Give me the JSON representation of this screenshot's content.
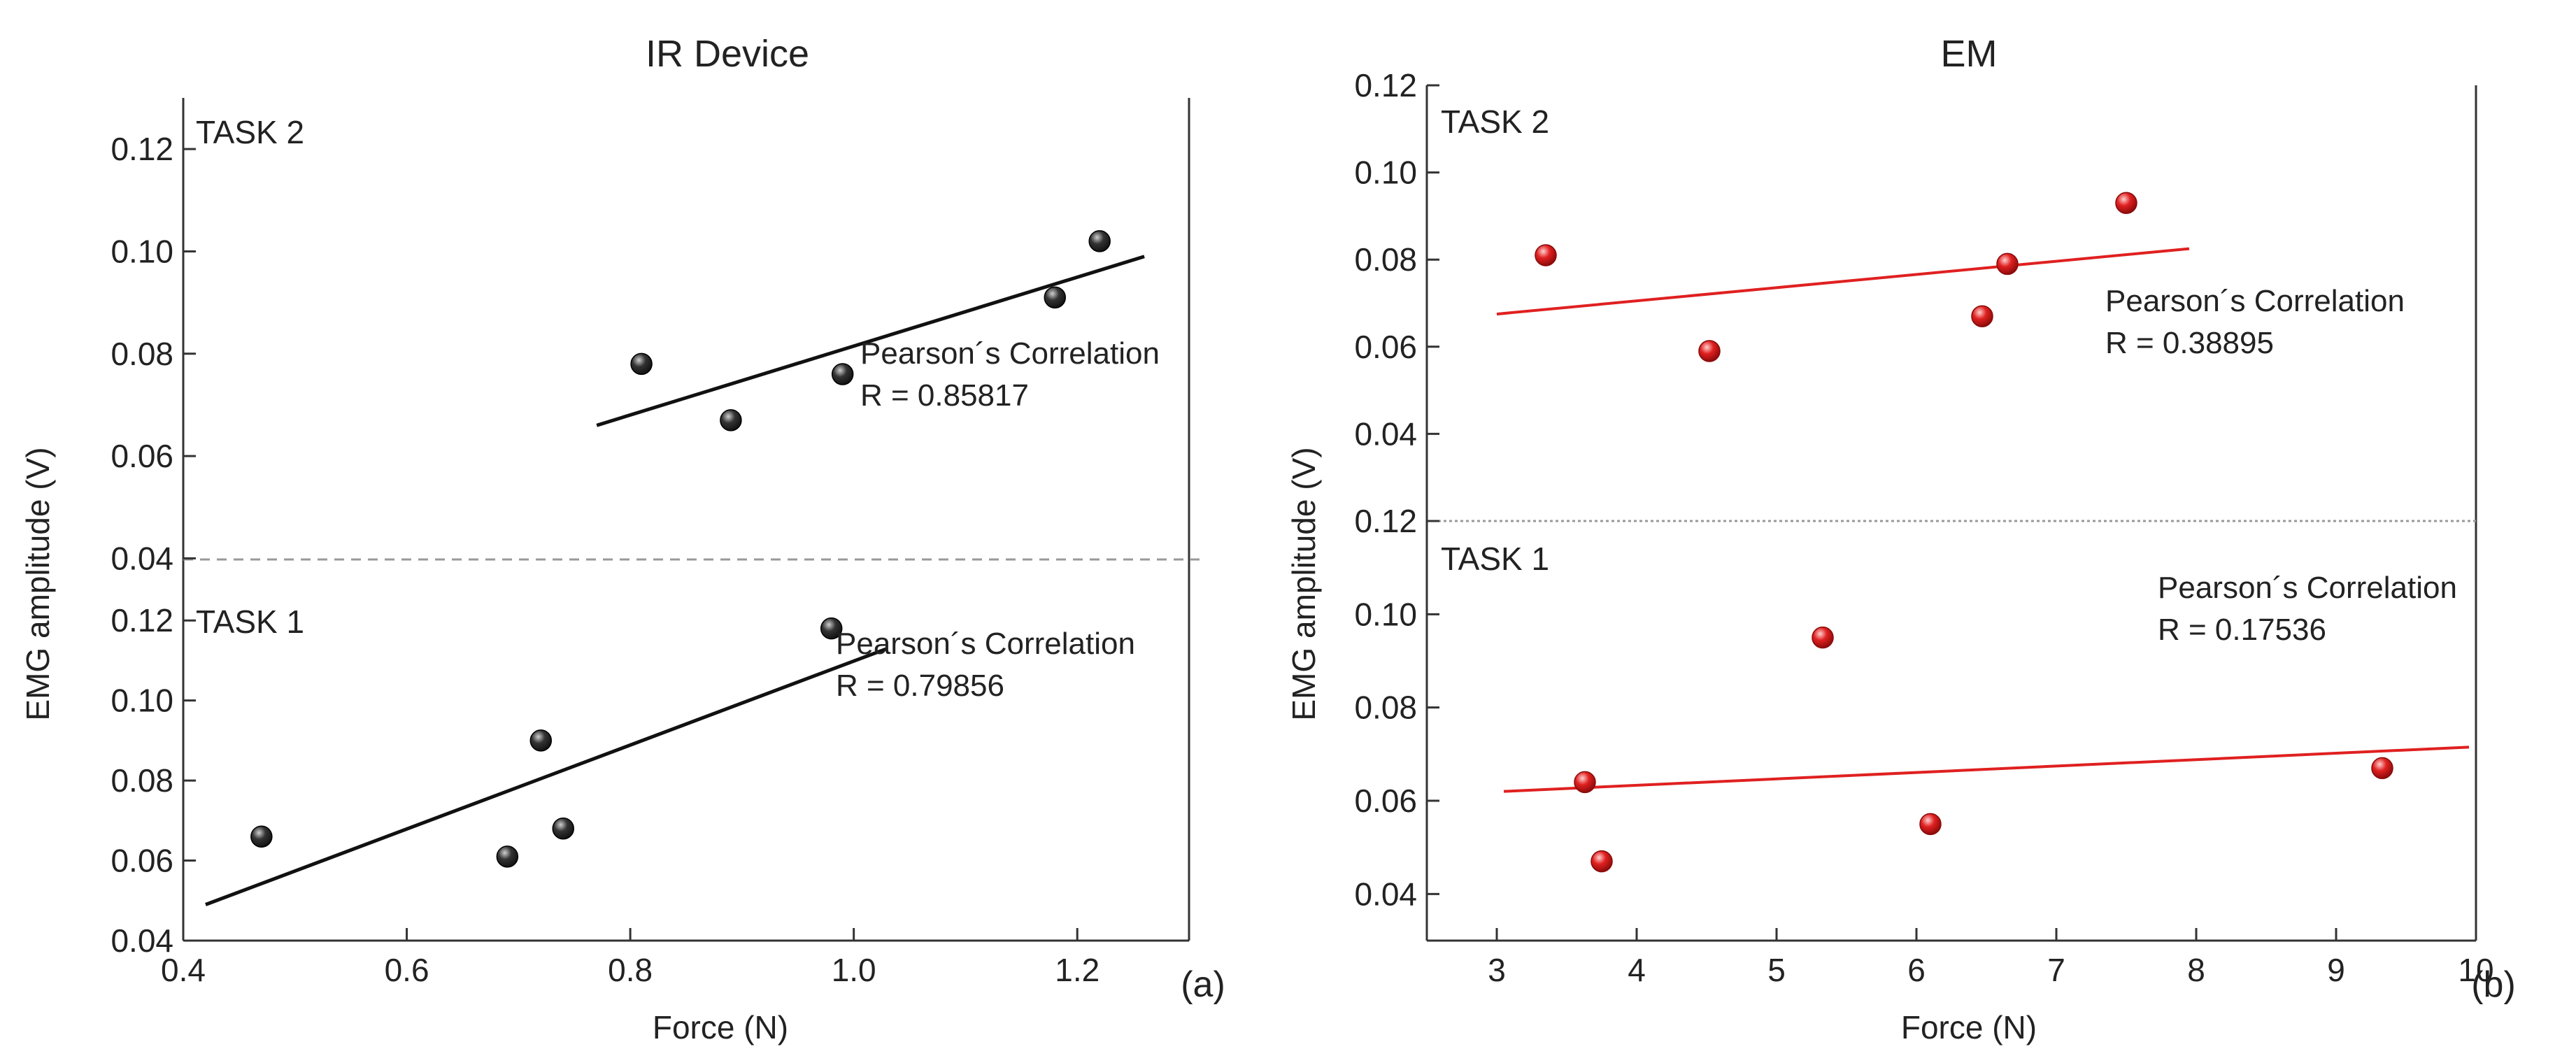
{
  "colors": {
    "ir_marker": "#111111",
    "ir_fit": "#111111",
    "em_marker": "#e02020",
    "em_fit": "#e02020",
    "axis": "#333333",
    "separator": "#999999"
  },
  "chart_data": [
    {
      "type": "scatter",
      "title": "IR Device",
      "xlabel": "Force (N)",
      "ylabel": "EMG amplitude (V)",
      "panel_tag": "(a)",
      "xlim": [
        0.4,
        1.3
      ],
      "x_ticks": [
        0.4,
        0.6,
        0.8,
        1.0,
        1.2
      ],
      "x_tick_labels": [
        "0.4",
        "0.6",
        "0.8",
        "1.0",
        "1.2"
      ],
      "subplots": [
        {
          "label": "TASK 2",
          "ylim": [
            0.035,
            0.13
          ],
          "y_ticks": [
            0.04,
            0.06,
            0.08,
            0.1,
            0.12
          ],
          "y_tick_labels": [
            "0.04",
            "0.06",
            "0.08",
            "0.10",
            "0.12"
          ],
          "points": [
            {
              "x": 0.81,
              "y": 0.078
            },
            {
              "x": 0.89,
              "y": 0.067
            },
            {
              "x": 0.99,
              "y": 0.076
            },
            {
              "x": 1.18,
              "y": 0.091
            },
            {
              "x": 1.22,
              "y": 0.102
            }
          ],
          "fit": {
            "x1": 0.77,
            "y1": 0.066,
            "x2": 1.26,
            "y2": 0.099
          },
          "annotation": [
            "Pearson´s Correlation",
            "R = 0.85817"
          ]
        },
        {
          "label": "TASK 1",
          "ylim": [
            0.04,
            0.13
          ],
          "y_ticks": [
            0.04,
            0.06,
            0.08,
            0.1,
            0.12
          ],
          "y_tick_labels": [
            "0.04",
            "0.06",
            "0.08",
            "0.10",
            "0.12"
          ],
          "points": [
            {
              "x": 0.47,
              "y": 0.066
            },
            {
              "x": 0.69,
              "y": 0.061
            },
            {
              "x": 0.72,
              "y": 0.09
            },
            {
              "x": 0.74,
              "y": 0.068
            },
            {
              "x": 0.98,
              "y": 0.118
            }
          ],
          "fit": {
            "x1": 0.42,
            "y1": 0.049,
            "x2": 1.03,
            "y2": 0.113
          },
          "annotation": [
            "Pearson´s Correlation",
            "R = 0.79856"
          ]
        }
      ]
    },
    {
      "type": "scatter",
      "title": "EM",
      "xlabel": "Force (N)",
      "ylabel": "EMG amplitude (V)",
      "panel_tag": "(b)",
      "xlim": [
        2.5,
        10
      ],
      "x_ticks": [
        3,
        4,
        5,
        6,
        7,
        8,
        9,
        10
      ],
      "x_tick_labels": [
        "3",
        "4",
        "5",
        "6",
        "7",
        "8",
        "9",
        "10"
      ],
      "subplots": [
        {
          "label": "TASK 2",
          "ylim": [
            0.02,
            0.12
          ],
          "y_ticks": [
            0.04,
            0.06,
            0.08,
            0.1,
            0.12
          ],
          "y_tick_labels": [
            "0.04",
            "0.06",
            "0.08",
            "0.10",
            "0.12"
          ],
          "points": [
            {
              "x": 3.35,
              "y": 0.081
            },
            {
              "x": 4.52,
              "y": 0.059
            },
            {
              "x": 6.47,
              "y": 0.067
            },
            {
              "x": 6.65,
              "y": 0.079
            },
            {
              "x": 7.5,
              "y": 0.093
            }
          ],
          "fit": {
            "x1": 3.0,
            "y1": 0.0675,
            "x2": 7.95,
            "y2": 0.0825
          },
          "annotation": [
            "Pearson´s Correlation",
            "R = 0.38895"
          ]
        },
        {
          "label": "TASK 1",
          "ylim": [
            0.03,
            0.12
          ],
          "y_ticks": [
            0.04,
            0.06,
            0.08,
            0.1,
            0.12
          ],
          "y_tick_labels": [
            "0.04",
            "0.06",
            "0.08",
            "0.10",
            "0.12"
          ],
          "points": [
            {
              "x": 3.63,
              "y": 0.064
            },
            {
              "x": 3.75,
              "y": 0.047
            },
            {
              "x": 5.33,
              "y": 0.095
            },
            {
              "x": 6.1,
              "y": 0.055
            },
            {
              "x": 9.33,
              "y": 0.067
            }
          ],
          "fit": {
            "x1": 3.05,
            "y1": 0.062,
            "x2": 9.95,
            "y2": 0.0715
          },
          "annotation": [
            "Pearson´s Correlation",
            "R = 0.17536"
          ]
        }
      ]
    }
  ]
}
